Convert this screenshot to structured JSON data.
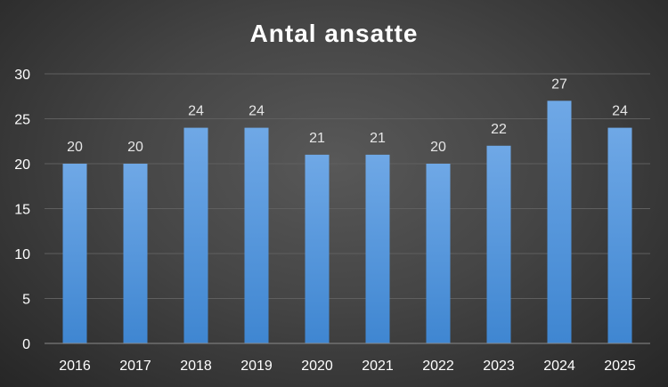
{
  "chart_data": {
    "type": "bar",
    "title": "Antal ansatte",
    "categories": [
      "2016",
      "2017",
      "2018",
      "2019",
      "2020",
      "2021",
      "2022",
      "2023",
      "2024",
      "2025"
    ],
    "values": [
      20,
      20,
      24,
      24,
      21,
      21,
      20,
      22,
      27,
      24
    ],
    "ylim": [
      0,
      30
    ],
    "yticks": [
      0,
      5,
      10,
      15,
      20,
      25,
      30
    ],
    "grid": true,
    "legend": "none",
    "data_labels": true,
    "colors": {
      "bar_top": "#6fa8e6",
      "bar_bottom": "#3f86d1",
      "title": "#ffffff",
      "labels": "#ffffff"
    }
  }
}
